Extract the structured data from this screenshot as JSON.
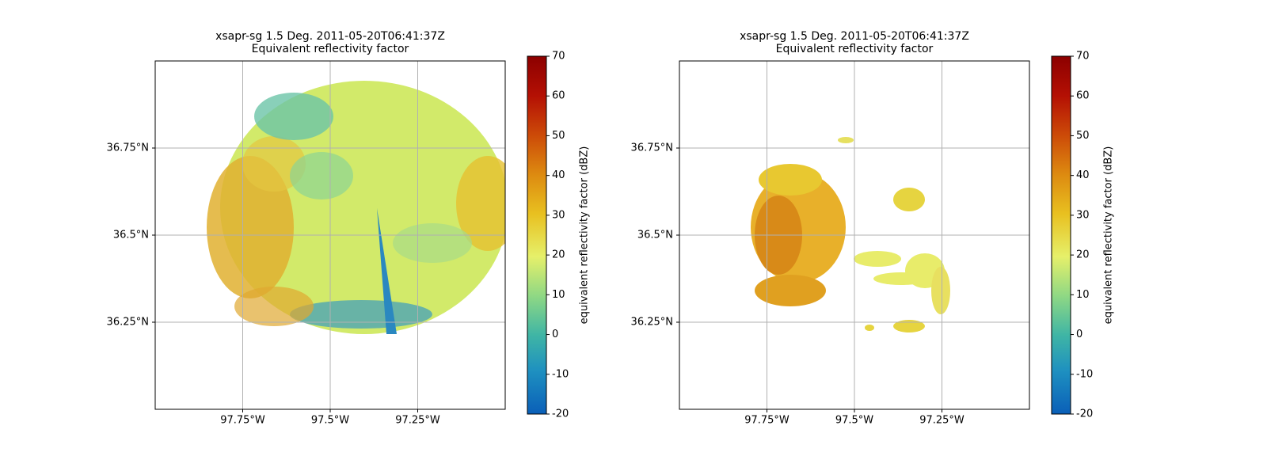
{
  "chart_data": [
    {
      "type": "map",
      "title": "xsapr-sg 1.5 Deg. 2011-05-20T06:41:37Z",
      "subtitle": "Equivalent reflectivity factor",
      "xlim": [
        -98.0,
        -97.0
      ],
      "ylim": [
        36.0,
        37.0
      ],
      "grid": true,
      "xticks": [
        {
          "value": -97.75,
          "label": "97.75°W"
        },
        {
          "value": -97.5,
          "label": "97.5°W"
        },
        {
          "value": -97.25,
          "label": "97.25°W"
        }
      ],
      "yticks": [
        {
          "value": 36.25,
          "label": "36.25°N"
        },
        {
          "value": 36.5,
          "label": "36.5°N"
        },
        {
          "value": 36.75,
          "label": "36.75°N"
        }
      ],
      "colorbar": {
        "label": "equivalent reflectivity factor (dBZ)",
        "lim": [
          -20,
          70
        ],
        "ticks": [
          -20,
          -10,
          0,
          10,
          20,
          30,
          40,
          50,
          60,
          70
        ]
      }
    },
    {
      "type": "map",
      "title": "xsapr-sg 1.5 Deg. 2011-05-20T06:41:37Z",
      "subtitle": "Equivalent reflectivity factor",
      "xlim": [
        -98.0,
        -97.0
      ],
      "ylim": [
        36.0,
        37.0
      ],
      "grid": true,
      "xticks": [
        {
          "value": -97.75,
          "label": "97.75°W"
        },
        {
          "value": -97.5,
          "label": "97.5°W"
        },
        {
          "value": -97.25,
          "label": "97.25°W"
        }
      ],
      "yticks": [
        {
          "value": 36.25,
          "label": "36.25°N"
        },
        {
          "value": 36.5,
          "label": "36.5°N"
        },
        {
          "value": 36.75,
          "label": "36.75°N"
        }
      ],
      "colorbar": {
        "label": "equivalent reflectivity factor (dBZ)",
        "lim": [
          -20,
          70
        ],
        "ticks": [
          -20,
          -10,
          0,
          10,
          20,
          30,
          40,
          50,
          60,
          70
        ]
      }
    }
  ]
}
